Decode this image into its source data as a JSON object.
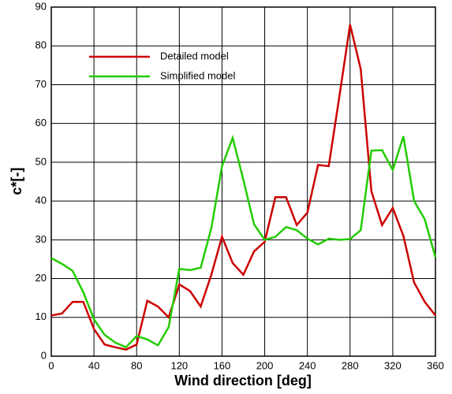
{
  "chart_data": {
    "type": "line",
    "x_label": "Wind direction [deg]",
    "y_label": "c*[-]",
    "x": [
      0,
      10,
      20,
      30,
      40,
      50,
      60,
      70,
      80,
      90,
      100,
      110,
      120,
      130,
      140,
      150,
      160,
      170,
      180,
      190,
      200,
      210,
      220,
      230,
      240,
      250,
      260,
      270,
      280,
      290,
      300,
      310,
      320,
      330,
      340,
      350,
      360
    ],
    "series": [
      {
        "name": "Detailed model",
        "color": "#cc0000",
        "values": [
          10.5,
          11,
          14,
          14,
          7,
          3,
          2.3,
          1.7,
          3,
          14.3,
          12.8,
          10,
          18.5,
          16.8,
          12.8,
          21,
          30.8,
          24,
          21,
          27,
          29.5,
          41,
          41,
          33.8,
          37,
          49.3,
          49,
          67,
          85.5,
          74,
          42.5,
          33.8,
          38.2,
          31,
          19,
          14,
          10.5
        ]
      },
      {
        "name": "Simplified model",
        "color": "#22cc00",
        "values": [
          25.3,
          23.8,
          22,
          16.5,
          9.5,
          5.5,
          3.5,
          2.3,
          5.2,
          4.3,
          2.8,
          7.5,
          22.5,
          22.2,
          22.8,
          33,
          49,
          56.3,
          45.5,
          34,
          30,
          30.8,
          33.3,
          32.5,
          30.3,
          28.8,
          30.3,
          30,
          30.2,
          32.5,
          53,
          53.1,
          48,
          56.7,
          40,
          35.3,
          25.5
        ]
      }
    ],
    "xlim": [
      0,
      360
    ],
    "xticks": [
      0,
      40,
      80,
      120,
      160,
      200,
      240,
      280,
      320,
      360
    ],
    "ylim": [
      0,
      90
    ],
    "yticks": [
      0,
      10,
      20,
      30,
      40,
      50,
      60,
      70,
      80,
      90
    ],
    "grid": true,
    "legend": "upper-left"
  }
}
